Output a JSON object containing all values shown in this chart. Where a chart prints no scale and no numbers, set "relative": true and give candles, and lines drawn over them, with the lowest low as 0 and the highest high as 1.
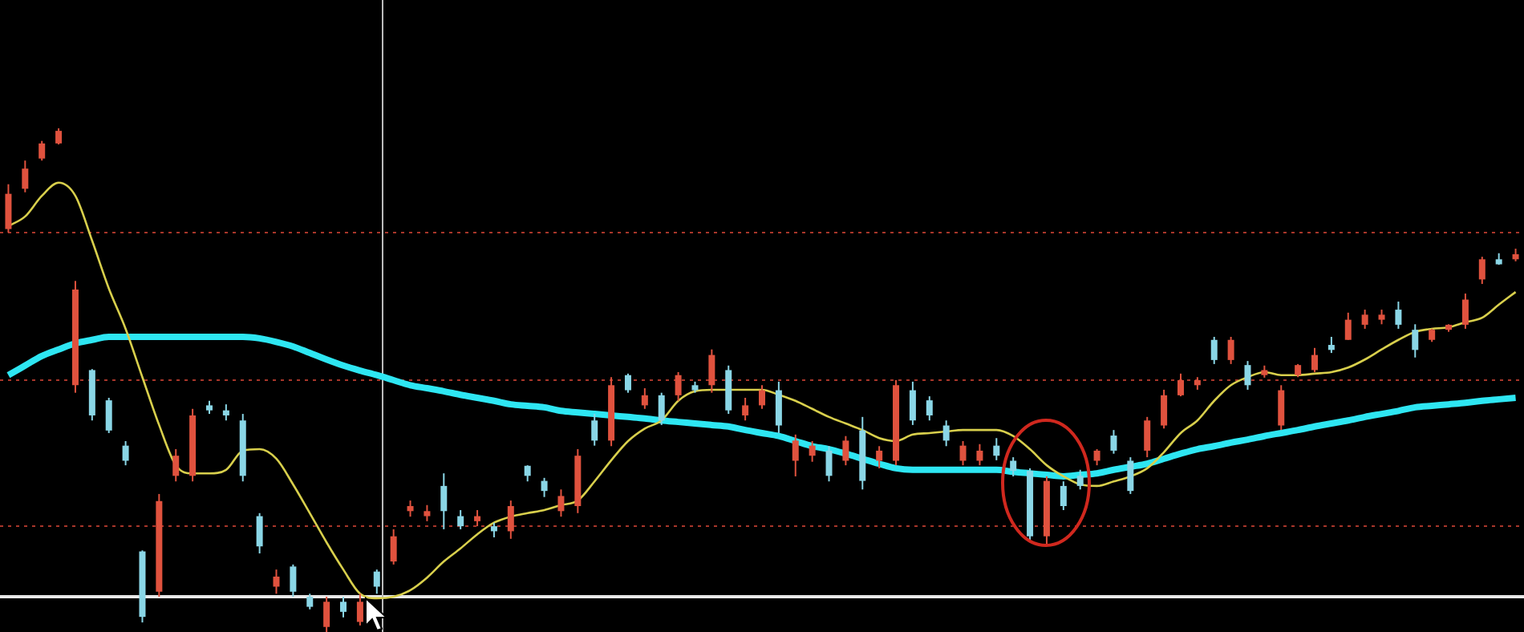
{
  "chart_data": {
    "type": "candlestick",
    "relative": true,
    "legend": false,
    "marker": "none",
    "categories": [
      null,
      null,
      null,
      null,
      null,
      null,
      null,
      null,
      null,
      null,
      null,
      null,
      null,
      null,
      null,
      null,
      null,
      null,
      null,
      null,
      null,
      null,
      null,
      null,
      null,
      null,
      null,
      null,
      null,
      null,
      null,
      null,
      null,
      null,
      null,
      null,
      null,
      null,
      null,
      null,
      null,
      null,
      null,
      null,
      null,
      null,
      null,
      null,
      null,
      null,
      null,
      null,
      null,
      null,
      null,
      null,
      null,
      null,
      null,
      null,
      null,
      null,
      null,
      null,
      null,
      null,
      null,
      null,
      null,
      null,
      null,
      null,
      null,
      null,
      null,
      null,
      null,
      null,
      null,
      null,
      null,
      null,
      null,
      null,
      null,
      null,
      null,
      null,
      null,
      null,
      null
    ],
    "ohlc": [
      [
        0.8,
        0.889,
        0.793,
        0.87
      ],
      [
        0.88,
        0.936,
        0.873,
        0.92
      ],
      [
        0.94,
        0.975,
        0.936,
        0.97
      ],
      [
        0.97,
        1,
        0.968,
        0.995
      ],
      [
        0.49,
        0.697,
        0.475,
        0.68
      ],
      [
        0.52,
        0.522,
        0.42,
        0.43
      ],
      [
        0.46,
        0.465,
        0.395,
        0.4
      ],
      [
        0.37,
        0.379,
        0.331,
        0.34
      ],
      [
        0.16,
        0.162,
        0.019,
        0.03
      ],
      [
        0.08,
        0.274,
        0.07,
        0.26
      ],
      [
        0.31,
        0.363,
        0.299,
        0.35
      ],
      [
        0.31,
        0.443,
        0.299,
        0.43
      ],
      [
        0.45,
        0.459,
        0.433,
        0.44
      ],
      [
        0.44,
        0.452,
        0.42,
        0.43
      ],
      [
        0.42,
        0.433,
        0.299,
        0.31
      ],
      [
        0.23,
        0.236,
        0.156,
        0.17
      ],
      [
        0.09,
        0.124,
        0.076,
        0.11
      ],
      [
        0.13,
        0.134,
        0.07,
        0.08
      ],
      [
        0.07,
        0.076,
        0.045,
        0.05
      ],
      [
        0.01,
        0.07,
        0,
        0.06
      ],
      [
        0.06,
        0.07,
        0.029,
        0.04
      ],
      [
        0.02,
        0.076,
        0.013,
        0.06
      ],
      [
        0.12,
        0.124,
        0.076,
        0.09
      ],
      [
        0.14,
        0.204,
        0.134,
        0.19
      ],
      [
        0.24,
        0.261,
        0.229,
        0.25
      ],
      [
        0.23,
        0.252,
        0.22,
        0.24
      ],
      [
        0.29,
        0.315,
        0.204,
        0.24
      ],
      [
        0.23,
        0.242,
        0.204,
        0.21
      ],
      [
        0.22,
        0.242,
        0.21,
        0.23
      ],
      [
        0.21,
        0.217,
        0.188,
        0.2
      ],
      [
        0.2,
        0.261,
        0.185,
        0.25
      ],
      [
        0.33,
        0.331,
        0.299,
        0.31
      ],
      [
        0.3,
        0.306,
        0.268,
        0.28
      ],
      [
        0.24,
        0.283,
        0.229,
        0.27
      ],
      [
        0.25,
        0.363,
        0.236,
        0.35
      ],
      [
        0.42,
        0.433,
        0.37,
        0.38
      ],
      [
        0.38,
        0.506,
        0.369,
        0.49
      ],
      [
        0.51,
        0.513,
        0.475,
        0.48
      ],
      [
        0.45,
        0.484,
        0.443,
        0.47
      ],
      [
        0.47,
        0.475,
        0.411,
        0.42
      ],
      [
        0.47,
        0.516,
        0.459,
        0.51
      ],
      [
        0.49,
        0.497,
        0.475,
        0.48
      ],
      [
        0.49,
        0.561,
        0.475,
        0.55
      ],
      [
        0.52,
        0.529,
        0.433,
        0.44
      ],
      [
        0.43,
        0.465,
        0.42,
        0.45
      ],
      [
        0.45,
        0.49,
        0.443,
        0.48
      ],
      [
        0.48,
        0.497,
        0.395,
        0.41
      ],
      [
        0.34,
        0.392,
        0.309,
        0.38
      ],
      [
        0.35,
        0.379,
        0.338,
        0.37
      ],
      [
        0.36,
        0.369,
        0.299,
        0.31
      ],
      [
        0.34,
        0.389,
        0.331,
        0.38
      ],
      [
        0.4,
        0.427,
        0.283,
        0.3
      ],
      [
        0.34,
        0.369,
        0.325,
        0.36
      ],
      [
        0.34,
        0.5,
        0.331,
        0.49
      ],
      [
        0.48,
        0.497,
        0.411,
        0.42
      ],
      [
        0.46,
        0.468,
        0.42,
        0.43
      ],
      [
        0.41,
        0.42,
        0.369,
        0.38
      ],
      [
        0.34,
        0.379,
        0.331,
        0.37
      ],
      [
        0.34,
        0.373,
        0.331,
        0.36
      ],
      [
        0.37,
        0.385,
        0.341,
        0.35
      ],
      [
        0.34,
        0.347,
        0.309,
        0.32
      ],
      [
        0.32,
        0.325,
        0.178,
        0.19
      ],
      [
        0.19,
        0.309,
        0.172,
        0.3
      ],
      [
        0.29,
        0.299,
        0.242,
        0.25
      ],
      [
        0.31,
        0.322,
        0.283,
        0.29
      ],
      [
        0.34,
        0.363,
        0.331,
        0.36
      ],
      [
        0.39,
        0.401,
        0.354,
        0.36
      ],
      [
        0.34,
        0.347,
        0.274,
        0.28
      ],
      [
        0.36,
        0.427,
        0.347,
        0.42
      ],
      [
        0.41,
        0.481,
        0.404,
        0.47
      ],
      [
        0.47,
        0.513,
        0.468,
        0.5
      ],
      [
        0.49,
        0.506,
        0.481,
        0.5
      ],
      [
        0.58,
        0.586,
        0.532,
        0.54
      ],
      [
        0.54,
        0.586,
        0.532,
        0.58
      ],
      [
        0.53,
        0.538,
        0.481,
        0.49
      ],
      [
        0.51,
        0.529,
        0.505,
        0.52
      ],
      [
        0.41,
        0.49,
        0.401,
        0.48
      ],
      [
        0.51,
        0.532,
        0.506,
        0.53
      ],
      [
        0.52,
        0.564,
        0.516,
        0.55
      ],
      [
        0.57,
        0.586,
        0.554,
        0.56
      ],
      [
        0.58,
        0.634,
        0.58,
        0.62
      ],
      [
        0.61,
        0.64,
        0.602,
        0.63
      ],
      [
        0.62,
        0.64,
        0.611,
        0.63
      ],
      [
        0.64,
        0.656,
        0.602,
        0.61
      ],
      [
        0.6,
        0.611,
        0.545,
        0.56
      ],
      [
        0.58,
        0.602,
        0.576,
        0.6
      ],
      [
        0.6,
        0.611,
        0.596,
        0.61
      ],
      [
        0.61,
        0.672,
        0.602,
        0.66
      ],
      [
        0.7,
        0.745,
        0.691,
        0.74
      ],
      [
        0.74,
        0.752,
        0.729,
        0.73
      ],
      [
        0.74,
        0.761,
        0.736,
        0.75
      ]
    ],
    "colors": [
      "#e0523e",
      "#e0523e",
      "#e0523e",
      "#e0523e",
      "#e0523e",
      "#8ad6e6",
      "#8ad6e6",
      "#8ad6e6",
      "#8ad6e6",
      "#e0523e",
      "#e0523e",
      "#e0523e",
      "#8ad6e6",
      "#8ad6e6",
      "#8ad6e6",
      "#8ad6e6",
      "#e0523e",
      "#8ad6e6",
      "#8ad6e6",
      "#e0523e",
      "#8ad6e6",
      "#e0523e",
      "#8ad6e6",
      "#e0523e",
      "#e0523e",
      "#e0523e",
      "#8ad6e6",
      "#8ad6e6",
      "#e0523e",
      "#8ad6e6",
      "#e0523e",
      "#8ad6e6",
      "#8ad6e6",
      "#e0523e",
      "#e0523e",
      "#8ad6e6",
      "#e0523e",
      "#8ad6e6",
      "#e0523e",
      "#8ad6e6",
      "#e0523e",
      "#8ad6e6",
      "#e0523e",
      "#8ad6e6",
      "#e0523e",
      "#e0523e",
      "#8ad6e6",
      "#e0523e",
      "#e0523e",
      "#8ad6e6",
      "#e0523e",
      "#8ad6e6",
      "#e0523e",
      "#e0523e",
      "#8ad6e6",
      "#8ad6e6",
      "#8ad6e6",
      "#e0523e",
      "#e0523e",
      "#8ad6e6",
      "#8ad6e6",
      "#8ad6e6",
      "#e0523e",
      "#8ad6e6",
      "#8ad6e6",
      "#e0523e",
      "#8ad6e6",
      "#8ad6e6",
      "#e0523e",
      "#e0523e",
      "#e0523e",
      "#e0523e",
      "#8ad6e6",
      "#e0523e",
      "#8ad6e6",
      "#e0523e",
      "#e0523e",
      "#e0523e",
      "#e0523e",
      "#8ad6e6",
      "#e0523e",
      "#e0523e",
      "#e0523e",
      "#8ad6e6",
      "#8ad6e6",
      "#e0523e",
      "#e0523e",
      "#e0523e",
      "#e0523e",
      "#8ad6e6",
      "#e0523e"
    ],
    "series": [
      {
        "type": "line",
        "color": "#d8cf4c",
        "values": [
          0.806,
          0.825,
          0.866,
          0.892,
          0.866,
          0.777,
          0.682,
          0.602,
          0.506,
          0.411,
          0.331,
          0.315,
          0.315,
          0.322,
          0.36,
          0.363,
          0.344,
          0.293,
          0.236,
          0.178,
          0.124,
          0.076,
          0.067,
          0.07,
          0.083,
          0.108,
          0.14,
          0.166,
          0.194,
          0.217,
          0.229,
          0.236,
          0.242,
          0.252,
          0.261,
          0.299,
          0.341,
          0.379,
          0.404,
          0.42,
          0.459,
          0.478,
          0.481,
          0.481,
          0.481,
          0.481,
          0.471,
          0.459,
          0.443,
          0.427,
          0.414,
          0.401,
          0.385,
          0.379,
          0.392,
          0.395,
          0.398,
          0.401,
          0.401,
          0.401,
          0.389,
          0.363,
          0.331,
          0.309,
          0.293,
          0.29,
          0.299,
          0.309,
          0.325,
          0.357,
          0.395,
          0.42,
          0.459,
          0.49,
          0.506,
          0.516,
          0.51,
          0.51,
          0.513,
          0.516,
          0.525,
          0.541,
          0.561,
          0.58,
          0.596,
          0.602,
          0.605,
          0.615,
          0.624,
          0.65,
          0.675
        ]
      },
      {
        "type": "line",
        "color": "#2ee6f2",
        "values": [
          0.51,
          0.529,
          0.548,
          0.561,
          0.573,
          0.58,
          0.586,
          0.586,
          0.586,
          0.586,
          0.586,
          0.586,
          0.586,
          0.586,
          0.586,
          0.583,
          0.576,
          0.567,
          0.554,
          0.541,
          0.529,
          0.519,
          0.51,
          0.5,
          0.49,
          0.484,
          0.478,
          0.471,
          0.465,
          0.459,
          0.452,
          0.449,
          0.446,
          0.439,
          0.436,
          0.433,
          0.43,
          0.427,
          0.424,
          0.42,
          0.417,
          0.414,
          0.411,
          0.408,
          0.401,
          0.395,
          0.389,
          0.379,
          0.369,
          0.363,
          0.354,
          0.344,
          0.334,
          0.325,
          0.322,
          0.322,
          0.322,
          0.322,
          0.322,
          0.322,
          0.318,
          0.315,
          0.312,
          0.309,
          0.312,
          0.315,
          0.322,
          0.328,
          0.334,
          0.344,
          0.354,
          0.363,
          0.369,
          0.376,
          0.382,
          0.389,
          0.395,
          0.401,
          0.408,
          0.414,
          0.42,
          0.427,
          0.433,
          0.439,
          0.446,
          0.449,
          0.452,
          0.455,
          0.459,
          0.462,
          0.465
        ]
      }
    ],
    "ref_lines": [
      {
        "axis": "y",
        "value": 0.793,
        "color": "#a8362a",
        "line_style": "dotted"
      },
      {
        "axis": "y",
        "value": 0.5,
        "color": "#a8362a",
        "line_style": "dotted"
      },
      {
        "axis": "y",
        "value": 0.21,
        "color": "#a8362a",
        "line_style": "dotted"
      },
      {
        "axis": "y",
        "value": 0.07,
        "color": "#e8e8e8",
        "line_style": "solid"
      }
    ]
  }
}
